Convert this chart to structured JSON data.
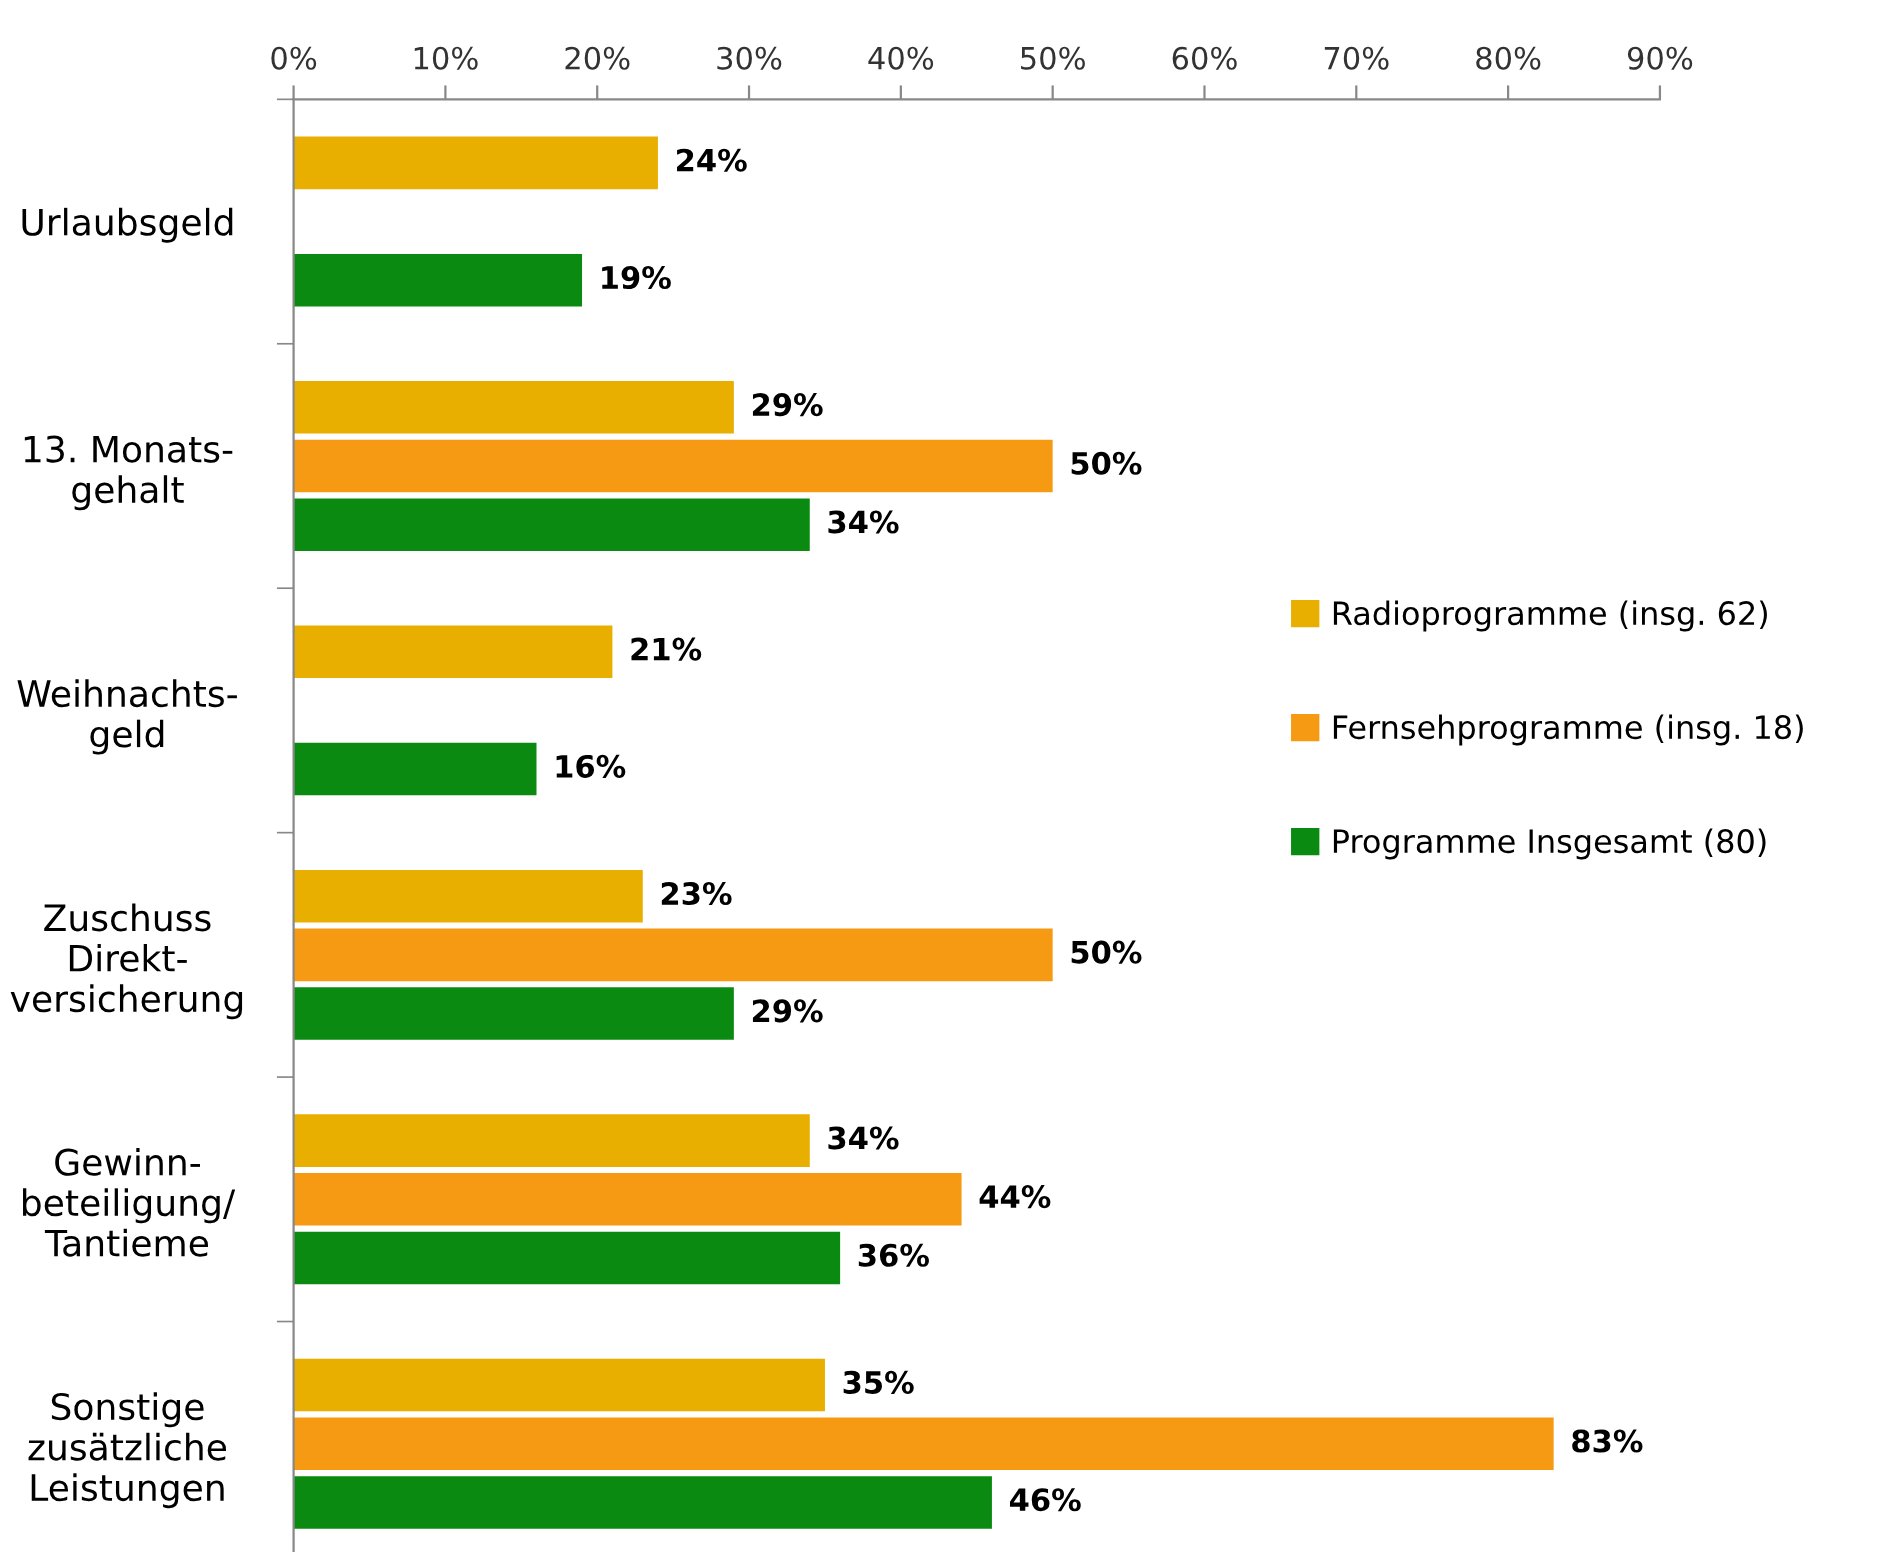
{
  "chart_data": {
    "type": "bar",
    "orientation": "horizontal",
    "categories": [
      "Urlaubsgeld",
      "13. Monats-\ngehalt",
      "Weihnachts-\ngeld",
      "Zuschuss\nDirekt-\nversicherung",
      "Gewinn-\nbeteiligung/\nTantieme",
      "Sonstige\nzusätzliche\nLeistungen"
    ],
    "series": [
      {
        "name": "Radioprogramme (insg. 62)",
        "color": "#e8ae00",
        "values": [
          24,
          29,
          21,
          23,
          34,
          35
        ],
        "value_labels": [
          "24%",
          "29%",
          "21%",
          "23%",
          "34%",
          "35%"
        ]
      },
      {
        "name": "Fernsehprogramme (insg. 18)",
        "color": "#f59a12",
        "values": [
          null,
          50,
          null,
          50,
          44,
          83
        ],
        "value_labels": [
          null,
          "50%",
          null,
          "50%",
          "44%",
          "83%"
        ]
      },
      {
        "name": "Programme Insgesamt (80)",
        "color": "#0b8a12",
        "values": [
          19,
          34,
          16,
          29,
          36,
          46
        ],
        "value_labels": [
          "19%",
          "34%",
          "16%",
          "29%",
          "36%",
          "46%"
        ]
      }
    ],
    "xlim": [
      0,
      90
    ],
    "xticks": [
      {
        "value": 0,
        "label": "0%"
      },
      {
        "value": 10,
        "label": "10%"
      },
      {
        "value": 20,
        "label": "20%"
      },
      {
        "value": 30,
        "label": "30%"
      },
      {
        "value": 40,
        "label": "40%"
      },
      {
        "value": 50,
        "label": "50%"
      },
      {
        "value": 60,
        "label": "60%"
      },
      {
        "value": 70,
        "label": "70%"
      },
      {
        "value": 80,
        "label": "80%"
      },
      {
        "value": 90,
        "label": "90%"
      }
    ],
    "grid": false,
    "legend": "right"
  }
}
